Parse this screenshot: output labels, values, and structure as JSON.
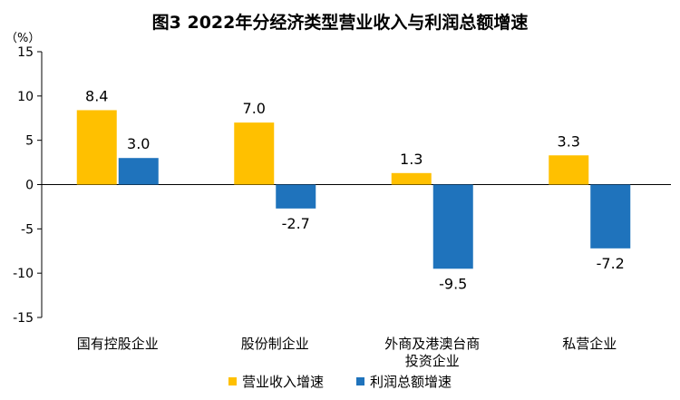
{
  "title": "图3  2022年分经济类型营业收入与利润总额增速",
  "unit": "（%）",
  "colors": {
    "series_1": "#FFC000",
    "series_2": "#1F73BC"
  },
  "chart_data": {
    "type": "bar",
    "title": "图3  2022年分经济类型营业收入与利润总额增速",
    "ylabel": "（%）",
    "xlabel": "",
    "categories": [
      "国有控股企业",
      "股份制企业",
      "外商及港澳台商投资企业",
      "私营企业"
    ],
    "category_lines": [
      [
        "国有控股企业"
      ],
      [
        "股份制企业"
      ],
      [
        "外商及港澳台商",
        "投资企业"
      ],
      [
        "私营企业"
      ]
    ],
    "series": [
      {
        "name": "营业收入增速",
        "values": [
          8.4,
          7.0,
          1.3,
          3.3
        ],
        "labels": [
          "8.4",
          "7.0",
          "1.3",
          "3.3"
        ],
        "color": "#FFC000"
      },
      {
        "name": "利润总额增速",
        "values": [
          3.0,
          -2.7,
          -9.5,
          -7.2
        ],
        "labels": [
          "3.0",
          "-2.7",
          "-9.5",
          "-7.2"
        ],
        "color": "#1F73BC"
      }
    ],
    "ylim": [
      -15,
      15
    ],
    "yticks": [
      15,
      10,
      5,
      0,
      -5,
      -10,
      -15
    ],
    "ytick_labels": [
      "15",
      "10",
      "5",
      "0",
      "-5",
      "-10",
      "-15"
    ],
    "grid": false,
    "legend": "bottom"
  }
}
